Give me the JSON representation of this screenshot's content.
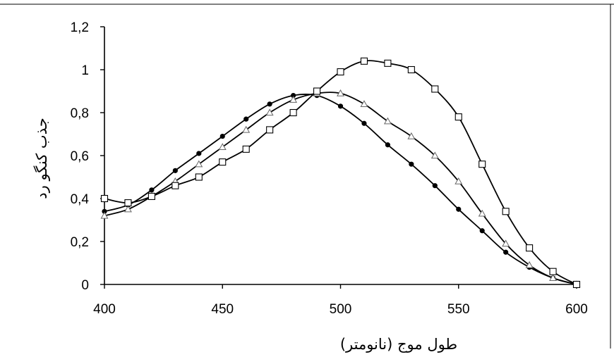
{
  "chart_data": {
    "type": "line",
    "xlabel": "طول موج (نانومتر)",
    "ylabel": "جذب کنگو رد",
    "xlim": [
      400,
      600
    ],
    "ylim": [
      0,
      1.2
    ],
    "x_ticks": [
      400,
      450,
      500,
      550,
      600
    ],
    "y_ticks": [
      0,
      0.2,
      0.4,
      0.6,
      0.8,
      1,
      1.2
    ],
    "x_tick_labels": [
      "400",
      "450",
      "500",
      "550",
      "600"
    ],
    "y_tick_labels": [
      "0",
      "0,2",
      "0,4",
      "0,6",
      "0,8",
      "1",
      "1,2"
    ],
    "grid": false,
    "series": [
      {
        "marker": "filled-circle",
        "color": "#000000",
        "x": [
          400,
          410,
          420,
          430,
          440,
          450,
          460,
          470,
          480,
          490,
          500,
          510,
          520,
          530,
          540,
          550,
          560,
          570,
          580,
          590,
          600
        ],
        "y": [
          0.34,
          0.37,
          0.44,
          0.53,
          0.61,
          0.69,
          0.77,
          0.84,
          0.88,
          0.88,
          0.83,
          0.75,
          0.65,
          0.56,
          0.46,
          0.35,
          0.25,
          0.15,
          0.08,
          0.03,
          0.0
        ]
      },
      {
        "marker": "open-triangle",
        "color": "#000000",
        "x": [
          400,
          410,
          420,
          430,
          440,
          450,
          460,
          470,
          480,
          490,
          500,
          510,
          520,
          530,
          540,
          550,
          560,
          570,
          580,
          590,
          600
        ],
        "y": [
          0.32,
          0.35,
          0.41,
          0.48,
          0.56,
          0.64,
          0.72,
          0.8,
          0.86,
          0.89,
          0.89,
          0.84,
          0.76,
          0.69,
          0.6,
          0.48,
          0.33,
          0.19,
          0.09,
          0.03,
          0.0
        ]
      },
      {
        "marker": "open-square",
        "color": "#000000",
        "x": [
          400,
          410,
          420,
          430,
          440,
          450,
          460,
          470,
          480,
          490,
          500,
          510,
          520,
          530,
          540,
          550,
          560,
          570,
          580,
          590,
          600
        ],
        "y": [
          0.4,
          0.38,
          0.41,
          0.46,
          0.5,
          0.57,
          0.63,
          0.72,
          0.8,
          0.9,
          0.99,
          1.04,
          1.03,
          1.0,
          0.91,
          0.78,
          0.56,
          0.34,
          0.17,
          0.06,
          0.0
        ]
      }
    ]
  }
}
